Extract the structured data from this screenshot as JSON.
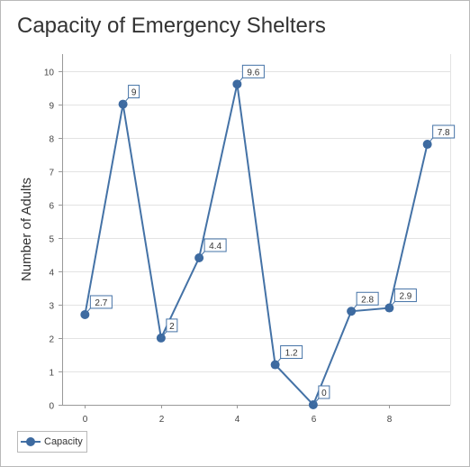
{
  "chart_data": {
    "type": "line",
    "title": "Capacity of Emergency Shelters",
    "xlabel": "",
    "ylabel": "Number of Adults",
    "xlim": [
      -0.6,
      9.6
    ],
    "ylim": [
      0,
      10.5
    ],
    "xticks": [
      0,
      2,
      4,
      6,
      8
    ],
    "yticks": [
      0,
      1,
      2,
      3,
      4,
      5,
      6,
      7,
      8,
      9,
      10
    ],
    "grid": true,
    "legend_position": "bottom-left",
    "series": [
      {
        "name": "Capacity",
        "color": "#4472a6",
        "x": [
          0,
          1,
          2,
          3,
          4,
          5,
          6,
          7,
          8,
          9
        ],
        "values": [
          2.7,
          9,
          2,
          4.4,
          9.6,
          1.2,
          0,
          2.8,
          2.9,
          7.8
        ],
        "labels": [
          "2.7",
          "9",
          "2",
          "4.4",
          "9.6",
          "1.2",
          "0",
          "2.8",
          "2.9",
          "7.8"
        ]
      }
    ]
  }
}
